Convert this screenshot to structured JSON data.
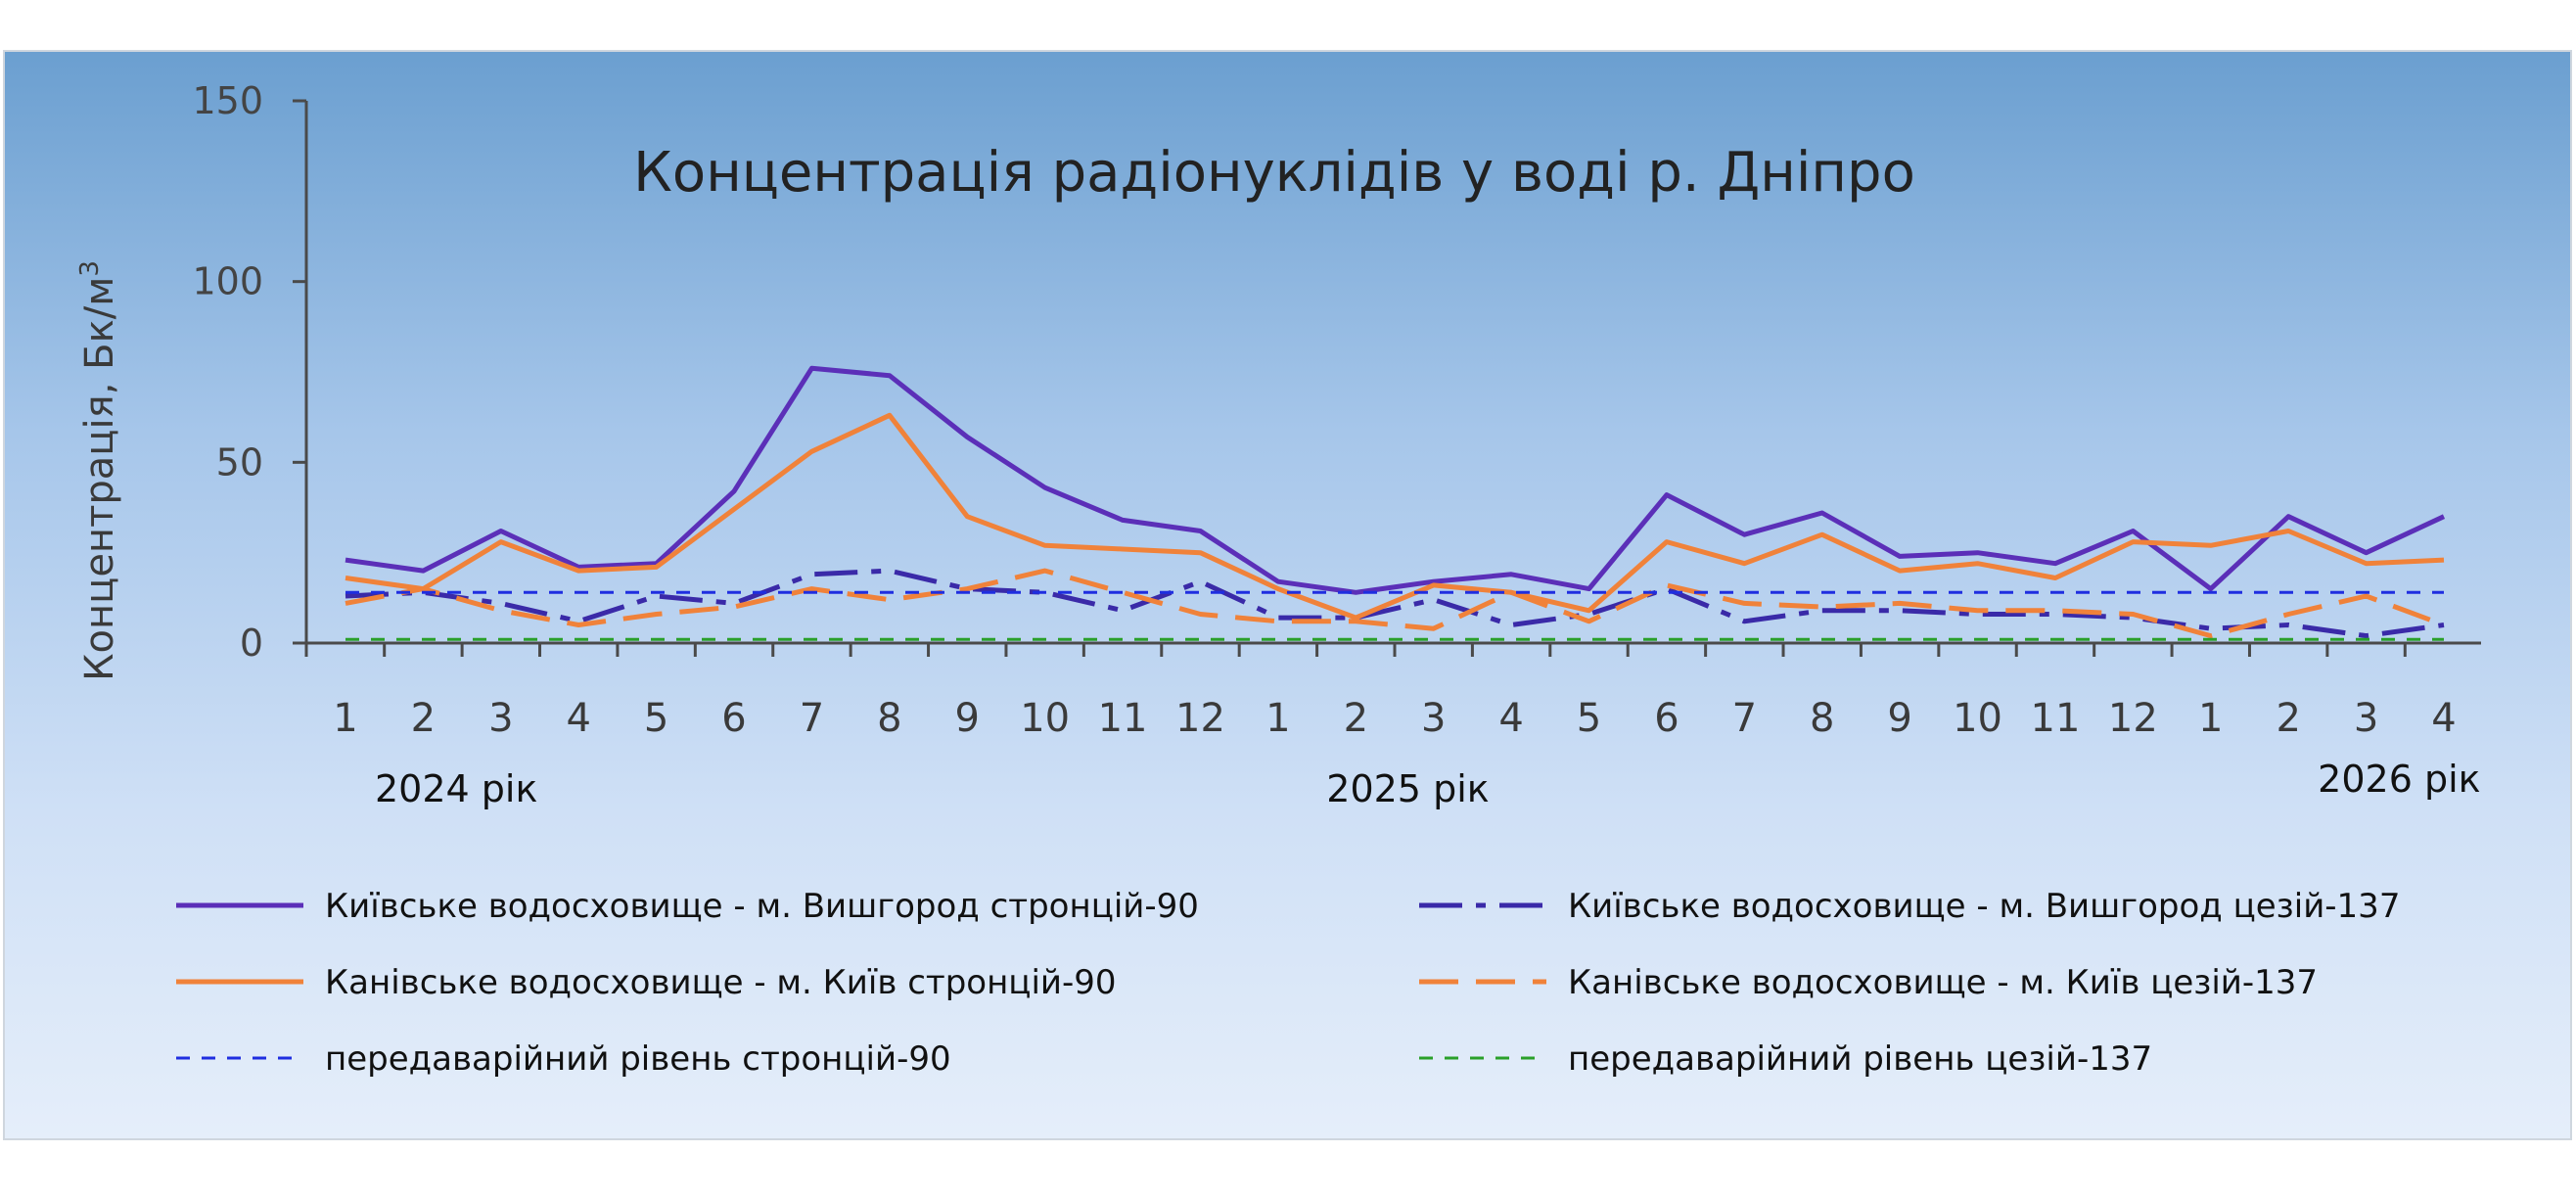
{
  "chart_data": {
    "type": "line",
    "title": "Концентрація радіонуклідів у воді р. Дніпро",
    "ylabel": "Концентрація, Бк/м",
    "ylabel_superscript": "3",
    "ylim": [
      0,
      150
    ],
    "yticks": [
      0,
      50,
      100,
      150
    ],
    "categories": [
      "1",
      "2",
      "3",
      "4",
      "5",
      "6",
      "7",
      "8",
      "9",
      "10",
      "11",
      "12",
      "1",
      "2",
      "3",
      "4",
      "5",
      "6",
      "7",
      "8",
      "9",
      "10",
      "11",
      "12",
      "1",
      "2",
      "3",
      "4"
    ],
    "year_labels": [
      {
        "text": "2024 рік",
        "at_index": 0
      },
      {
        "text": "2025 рік",
        "at_index": 13
      },
      {
        "text": "2026 рік",
        "at_index": 25
      }
    ],
    "grid": false,
    "legend_position": "bottom",
    "series": [
      {
        "name": "Київське водосховище - м. Вишгород стронцій-90",
        "color": "#5b2fb8",
        "dash": "",
        "width": 5,
        "values": [
          23,
          20,
          31,
          21,
          22,
          42,
          76,
          74,
          57,
          43,
          34,
          31,
          17,
          14,
          17,
          19,
          15,
          41,
          30,
          36,
          24,
          25,
          22,
          31,
          15,
          35,
          25,
          35
        ]
      },
      {
        "name": "Київське водосховище - м. Вишгород цезій-137",
        "color": "#3a2aa8",
        "dash": "44 14 10 14",
        "width": 5,
        "values": [
          13,
          14,
          11,
          6,
          13,
          11,
          19,
          20,
          15,
          14,
          9,
          17,
          7,
          7,
          12,
          5,
          8,
          15,
          6,
          9,
          9,
          8,
          8,
          7,
          4,
          5,
          2,
          5
        ]
      },
      {
        "name": "Канівське водосховище - м. Київ стронцій-90",
        "color": "#f0823a",
        "dash": "",
        "width": 5,
        "values": [
          18,
          15,
          28,
          20,
          21,
          37,
          53,
          63,
          35,
          27,
          26,
          25,
          15,
          7,
          16,
          14,
          9,
          28,
          22,
          30,
          20,
          22,
          18,
          28,
          27,
          31,
          22,
          23
        ]
      },
      {
        "name": "Канівське водосховище - м. Київ цезій-137",
        "color": "#f0823a",
        "dash": "40 18",
        "width": 5,
        "values": [
          11,
          15,
          9,
          5,
          8,
          10,
          15,
          12,
          15,
          20,
          14,
          8,
          6,
          6,
          4,
          14,
          6,
          16,
          11,
          10,
          11,
          9,
          9,
          8,
          2,
          8,
          13,
          5
        ]
      },
      {
        "name": "передаварійний рівень стронцій-90",
        "color": "#1f2ee0",
        "dash": "14 12",
        "width": 3,
        "values": [
          14,
          14,
          14,
          14,
          14,
          14,
          14,
          14,
          14,
          14,
          14,
          14,
          14,
          14,
          14,
          14,
          14,
          14,
          14,
          14,
          14,
          14,
          14,
          14,
          14,
          14,
          14,
          14
        ]
      },
      {
        "name": "передаварійний рівень цезій-137",
        "color": "#2aa02a",
        "dash": "14 12",
        "width": 3,
        "values": [
          1,
          1,
          1,
          1,
          1,
          1,
          1,
          1,
          1,
          1,
          1,
          1,
          1,
          1,
          1,
          1,
          1,
          1,
          1,
          1,
          1,
          1,
          1,
          1,
          1,
          1,
          1,
          1
        ]
      }
    ]
  }
}
